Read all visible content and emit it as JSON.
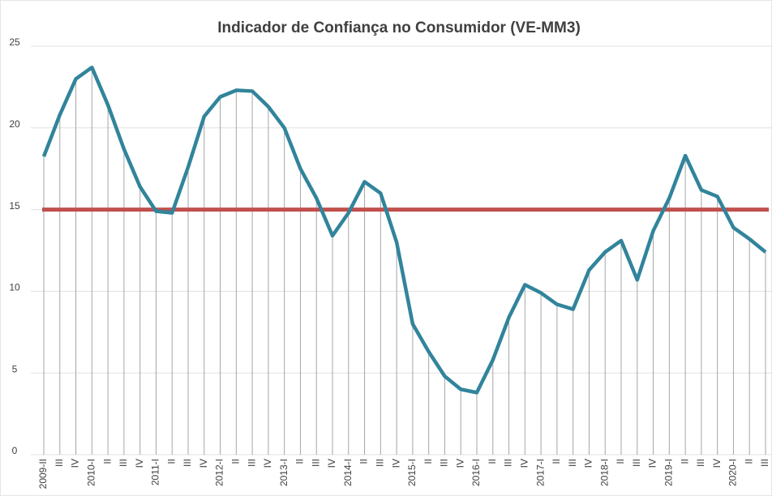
{
  "chart_data": {
    "type": "line",
    "title": "Indicador de Confiança no Consumidor (VE-MM3)",
    "categories": [
      "2009-II",
      "III",
      "IV",
      "2010-I",
      "II",
      "III",
      "IV",
      "2011-I",
      "II",
      "III",
      "IV",
      "2012-I",
      "II",
      "III",
      "IV",
      "2013-I",
      "II",
      "III",
      "IV",
      "2014-I",
      "II",
      "III",
      "IV",
      "2015-I",
      "II",
      "III",
      "IV",
      "2016-I",
      "II",
      "III",
      "IV",
      "2017-I",
      "II",
      "III",
      "IV",
      "2018-I",
      "II",
      "III",
      "IV",
      "2019-I",
      "II",
      "III",
      "IV",
      "2020-I",
      "II",
      "III"
    ],
    "series": [
      {
        "color": "#31849b",
        "values": [
          18.25,
          20.8,
          23.0,
          23.7,
          21.4,
          18.7,
          16.4,
          14.9,
          14.8,
          17.6,
          20.7,
          21.9,
          22.3,
          22.25,
          21.3,
          20.0,
          17.5,
          15.7,
          13.4,
          14.8,
          16.7,
          16.0,
          13.0,
          8.0,
          6.3,
          4.8,
          4.0,
          3.8,
          5.8,
          8.4,
          10.4,
          9.9,
          9.2,
          8.9,
          11.3,
          12.4,
          13.1,
          10.7,
          13.7,
          15.7,
          18.3,
          16.2,
          15.8,
          13.9,
          13.2,
          12.4
        ]
      }
    ],
    "reference_line": {
      "value": 15,
      "color": "#c0504d"
    },
    "ylim": [
      0,
      25
    ],
    "yticks": [
      0,
      5,
      10,
      15,
      20,
      25
    ],
    "grid": true,
    "drop_lines": true
  }
}
